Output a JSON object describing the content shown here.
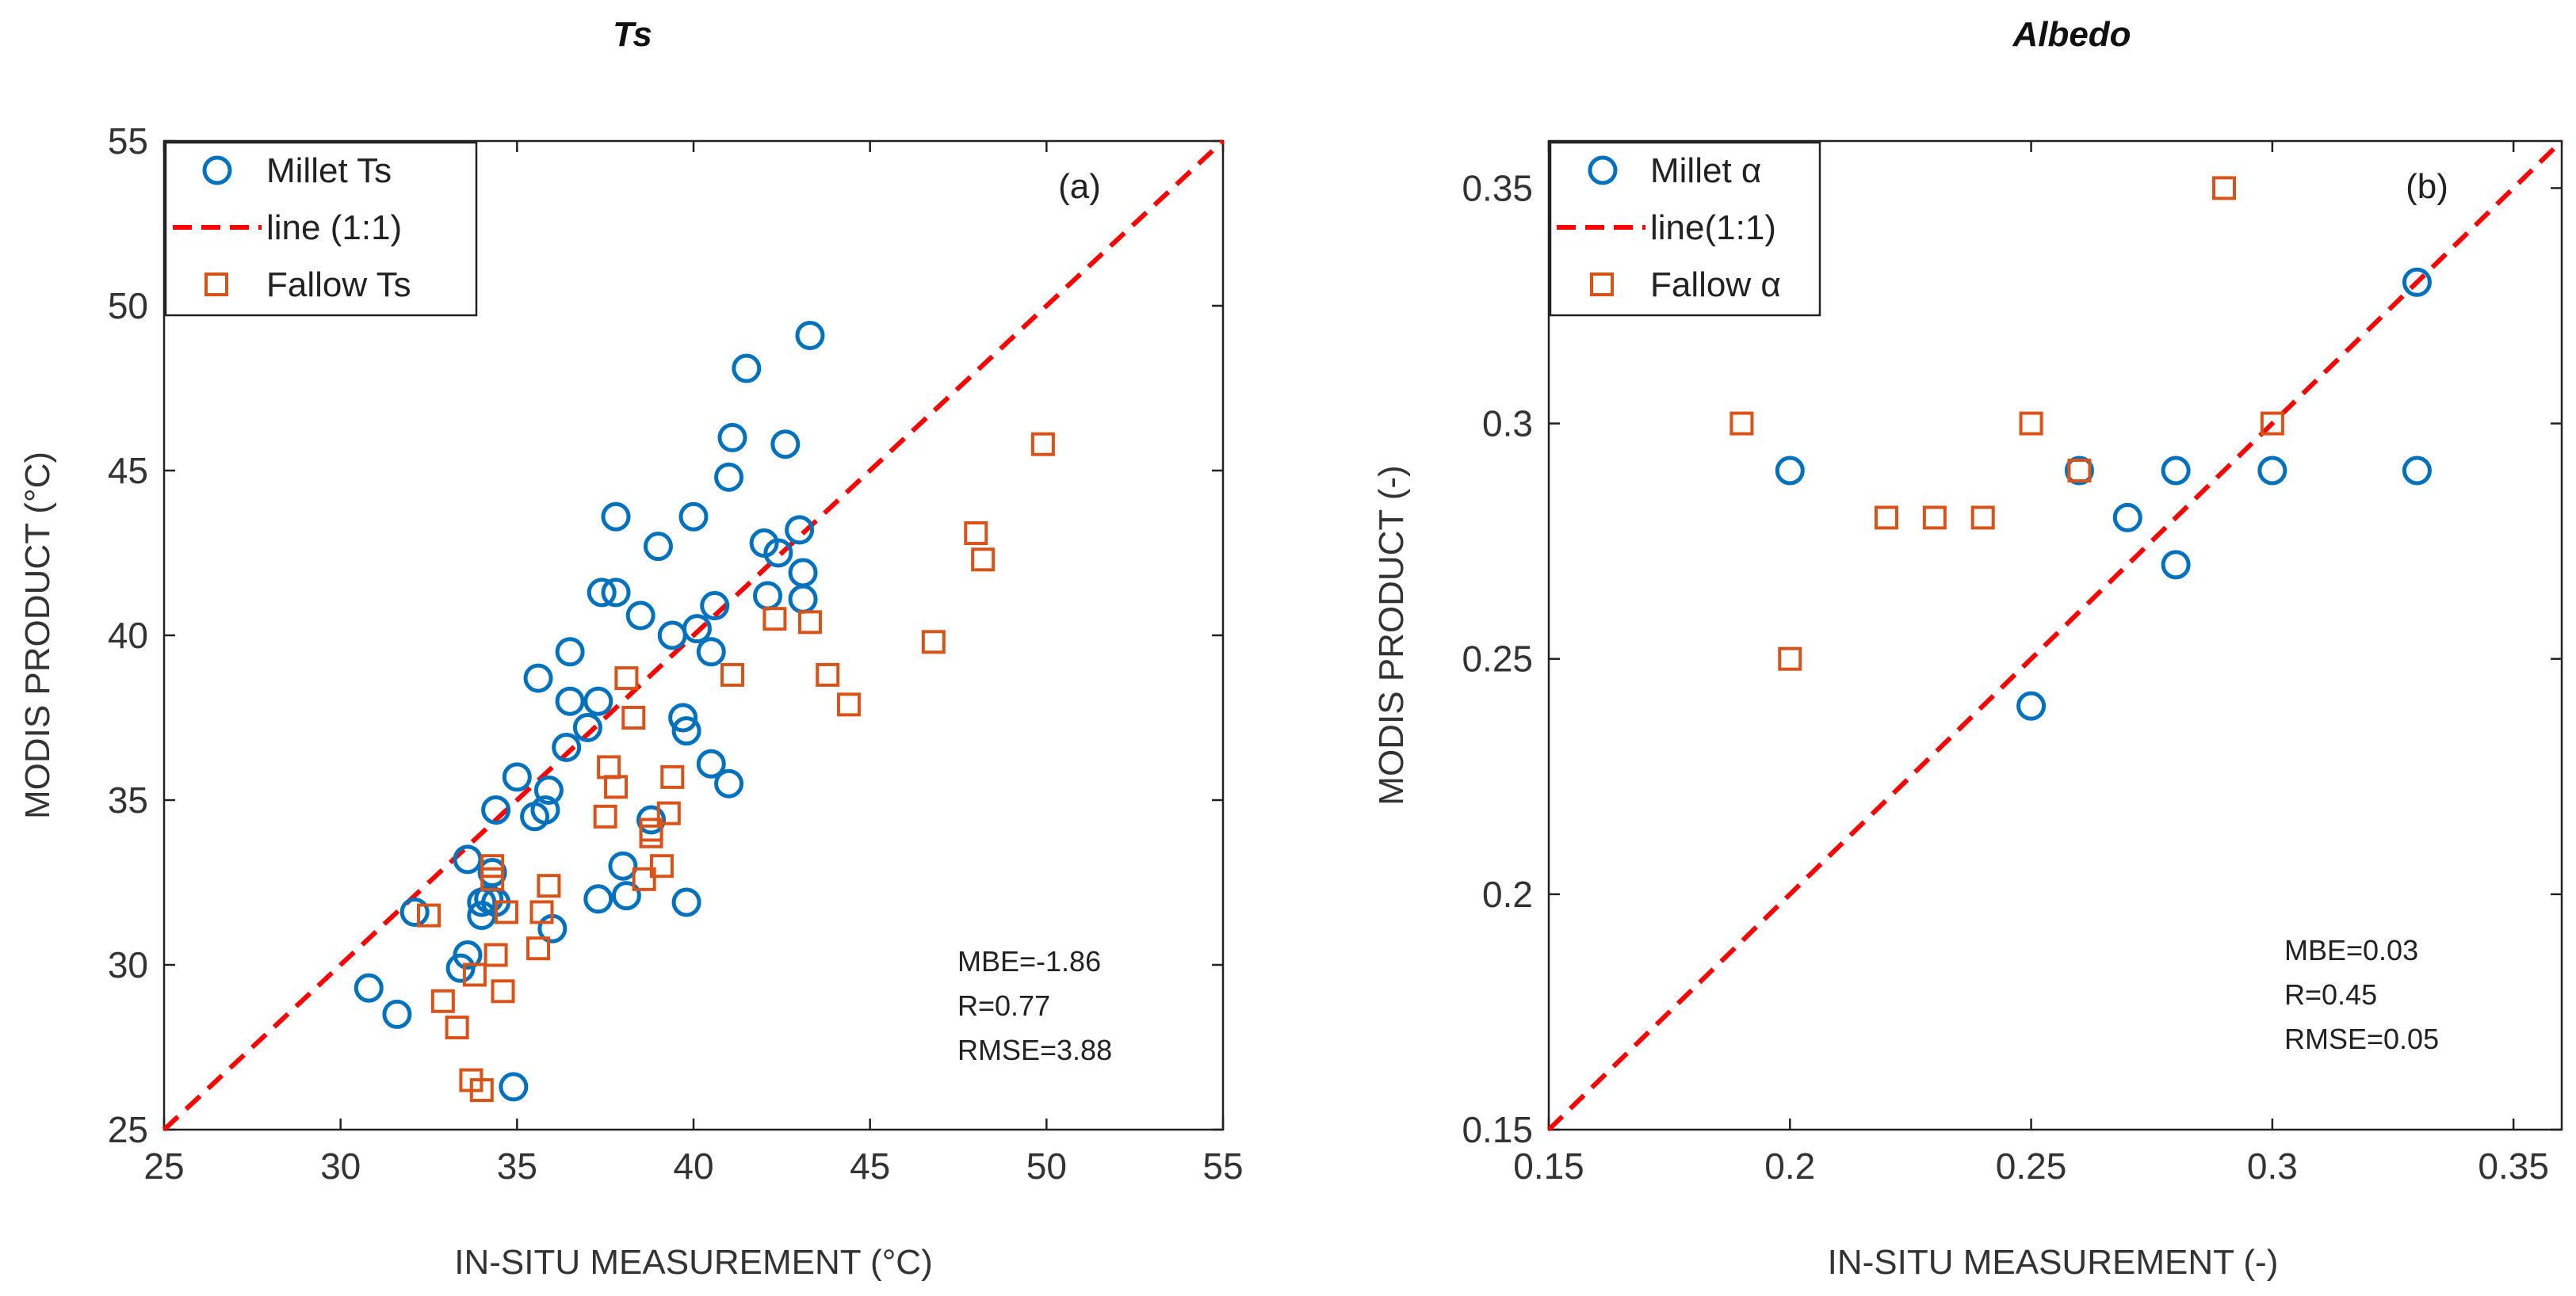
{
  "colors": {
    "millet": "#0072BD",
    "fallow": "#D95319",
    "line": "#FF0000"
  },
  "chart_data": [
    {
      "type": "scatter",
      "title": "Ts",
      "panel_tag": "(a)",
      "xlabel": "IN-SITU MEASUREMENT (°C)",
      "ylabel": "MODIS PRODUCT (°C)",
      "xlim": [
        25,
        55
      ],
      "ylim": [
        25,
        55
      ],
      "xticks": [
        25,
        30,
        35,
        40,
        45,
        50,
        55
      ],
      "yticks": [
        25,
        30,
        35,
        40,
        45,
        50,
        55
      ],
      "legend_position": "top-left",
      "legend": [
        "Millet Ts",
        "line (1:1)",
        "Fallow Ts"
      ],
      "stats": [
        "MBE=-1.86",
        "R=0.77",
        "RMSE=3.88"
      ],
      "series": [
        {
          "name": "Millet Ts",
          "marker": "circle",
          "points": [
            [
              30.8,
              29.3
            ],
            [
              31.6,
              28.5
            ],
            [
              32.1,
              31.6
            ],
            [
              33.4,
              29.9
            ],
            [
              33.6,
              30.3
            ],
            [
              33.6,
              33.2
            ],
            [
              34.0,
              31.5
            ],
            [
              34.0,
              31.9
            ],
            [
              34.2,
              32.0
            ],
            [
              34.3,
              32.8
            ],
            [
              34.4,
              31.9
            ],
            [
              34.4,
              34.7
            ],
            [
              34.9,
              26.3
            ],
            [
              35.0,
              35.7
            ],
            [
              35.5,
              34.5
            ],
            [
              35.6,
              38.7
            ],
            [
              35.8,
              34.7
            ],
            [
              35.9,
              35.3
            ],
            [
              36.0,
              31.1
            ],
            [
              36.4,
              36.6
            ],
            [
              36.5,
              39.5
            ],
            [
              36.5,
              38.0
            ],
            [
              37.0,
              37.2
            ],
            [
              37.3,
              38.0
            ],
            [
              37.3,
              32.0
            ],
            [
              37.4,
              41.3
            ],
            [
              37.8,
              41.3
            ],
            [
              37.8,
              43.6
            ],
            [
              38.0,
              33.0
            ],
            [
              38.1,
              32.1
            ],
            [
              38.5,
              40.6
            ],
            [
              38.8,
              34.4
            ],
            [
              39.0,
              42.7
            ],
            [
              39.4,
              40.0
            ],
            [
              39.7,
              37.5
            ],
            [
              39.8,
              37.1
            ],
            [
              39.8,
              31.9
            ],
            [
              40.0,
              43.6
            ],
            [
              40.1,
              40.2
            ],
            [
              40.5,
              39.5
            ],
            [
              40.5,
              36.1
            ],
            [
              40.6,
              40.9
            ],
            [
              41.0,
              35.5
            ],
            [
              41.0,
              44.8
            ],
            [
              41.1,
              46.0
            ],
            [
              41.5,
              48.1
            ],
            [
              42.0,
              42.8
            ],
            [
              42.1,
              41.2
            ],
            [
              42.4,
              42.5
            ],
            [
              42.6,
              45.8
            ],
            [
              43.0,
              43.2
            ],
            [
              43.1,
              41.9
            ],
            [
              43.1,
              41.1
            ],
            [
              43.3,
              49.1
            ]
          ]
        },
        {
          "name": "Fallow Ts",
          "marker": "square",
          "points": [
            [
              32.5,
              31.5
            ],
            [
              32.9,
              28.9
            ],
            [
              33.3,
              28.1
            ],
            [
              33.7,
              26.5
            ],
            [
              33.8,
              29.7
            ],
            [
              34.0,
              26.2
            ],
            [
              34.3,
              33.0
            ],
            [
              34.3,
              32.6
            ],
            [
              34.4,
              30.3
            ],
            [
              34.6,
              29.2
            ],
            [
              34.7,
              31.6
            ],
            [
              35.6,
              30.5
            ],
            [
              35.7,
              31.6
            ],
            [
              35.9,
              32.4
            ],
            [
              37.5,
              34.5
            ],
            [
              37.6,
              36.0
            ],
            [
              37.8,
              35.4
            ],
            [
              38.1,
              38.7
            ],
            [
              38.3,
              37.5
            ],
            [
              38.6,
              32.6
            ],
            [
              38.8,
              34.1
            ],
            [
              38.8,
              33.9
            ],
            [
              39.1,
              33.0
            ],
            [
              39.3,
              34.6
            ],
            [
              39.4,
              35.7
            ],
            [
              41.1,
              38.8
            ],
            [
              42.3,
              40.5
            ],
            [
              43.3,
              40.4
            ],
            [
              43.8,
              38.8
            ],
            [
              44.4,
              37.9
            ],
            [
              46.8,
              39.8
            ],
            [
              48.0,
              43.1
            ],
            [
              48.2,
              42.3
            ],
            [
              49.9,
              45.8
            ]
          ]
        }
      ]
    },
    {
      "type": "scatter",
      "title": "Albedo",
      "panel_tag": "(b)",
      "xlabel": "IN-SITU MEASUREMENT (-)",
      "ylabel": "MODIS PRODUCT (-)",
      "xlim": [
        0.15,
        0.36
      ],
      "ylim": [
        0.15,
        0.36
      ],
      "xticks": [
        0.15,
        0.2,
        0.25,
        0.3,
        0.35
      ],
      "yticks": [
        0.15,
        0.2,
        0.25,
        0.3,
        0.35
      ],
      "legend_position": "top-left",
      "legend": [
        "Millet α",
        "line(1:1)",
        "Fallow α"
      ],
      "stats": [
        "MBE=0.03",
        "R=0.45",
        "RMSE=0.05"
      ],
      "series": [
        {
          "name": "Millet α",
          "marker": "circle",
          "points": [
            [
              0.2,
              0.29
            ],
            [
              0.25,
              0.24
            ],
            [
              0.26,
              0.29
            ],
            [
              0.27,
              0.28
            ],
            [
              0.28,
              0.29
            ],
            [
              0.28,
              0.27
            ],
            [
              0.3,
              0.29
            ],
            [
              0.33,
              0.33
            ],
            [
              0.33,
              0.29
            ]
          ]
        },
        {
          "name": "Fallow α",
          "marker": "square",
          "points": [
            [
              0.19,
              0.3
            ],
            [
              0.2,
              0.25
            ],
            [
              0.22,
              0.28
            ],
            [
              0.23,
              0.28
            ],
            [
              0.24,
              0.28
            ],
            [
              0.25,
              0.3
            ],
            [
              0.26,
              0.29
            ],
            [
              0.29,
              0.35
            ],
            [
              0.3,
              0.3
            ]
          ]
        }
      ]
    }
  ]
}
